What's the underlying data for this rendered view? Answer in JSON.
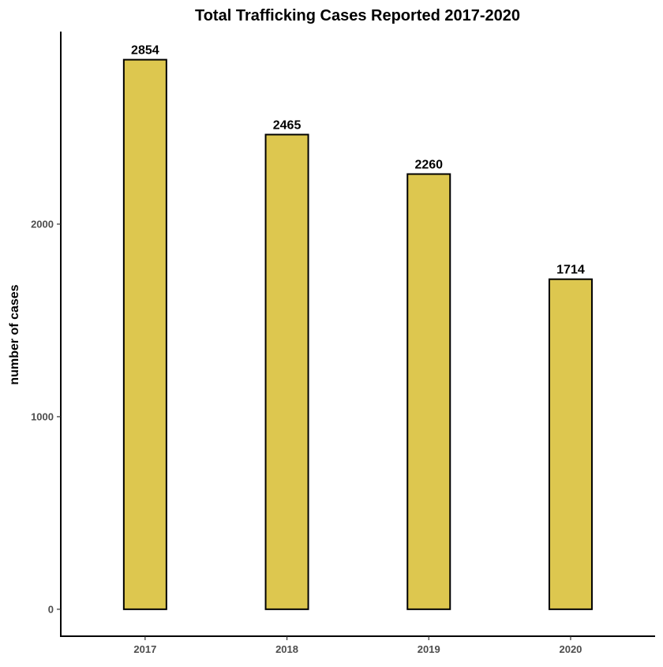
{
  "chart_data": {
    "type": "bar",
    "title": "Total Trafficking Cases Reported 2017-2020",
    "xlabel": "",
    "ylabel": "number of cases",
    "categories": [
      "2017",
      "2018",
      "2019",
      "2020"
    ],
    "values": [
      2854,
      2465,
      2260,
      1714
    ],
    "data_labels": [
      "2854",
      "2465",
      "2260",
      "1714"
    ],
    "yticks": [
      0,
      1000,
      2000
    ],
    "ytick_labels": [
      "0",
      "1000",
      "2000"
    ],
    "ylim": [
      -140,
      3000
    ],
    "grid": false,
    "legend": "none",
    "colors": {
      "bar_fill": "#DDC74F",
      "bar_stroke": "#000000",
      "axis": "#000000",
      "tick_label": "#4d4d4d",
      "text": "#000000"
    }
  }
}
